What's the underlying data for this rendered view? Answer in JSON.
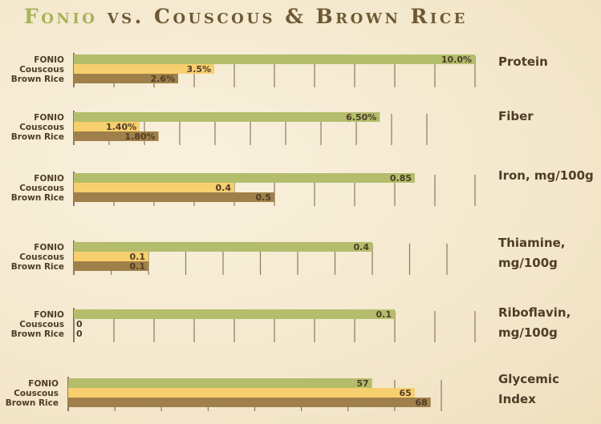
{
  "title": {
    "lead": "Fonio",
    "rest": " vs. Couscous & Brown Rice"
  },
  "colors": {
    "fonio": "#b3bd6c",
    "couscous": "#f7cf6e",
    "brown_rice": "#a0804a",
    "text": "#4e3d27",
    "grid": "#5c4a32"
  },
  "chart_data": [
    {
      "type": "bar",
      "metric": [
        "Protein"
      ],
      "categories": [
        "FONIO",
        "Couscous",
        "Brown Rice"
      ],
      "values": [
        10.0,
        3.5,
        2.6
      ],
      "labels": [
        "10.0%",
        "3.5%",
        "2.6%"
      ],
      "xlim": [
        0,
        10
      ]
    },
    {
      "type": "bar",
      "metric": [
        "Fiber"
      ],
      "categories": [
        "FONIO",
        "Couscous",
        "Brown Rice"
      ],
      "values": [
        6.5,
        1.4,
        1.8
      ],
      "labels": [
        "6.50%",
        "1.40%",
        "1.80%"
      ],
      "xlim": [
        0,
        7.5
      ]
    },
    {
      "type": "bar",
      "metric": [
        "Iron, mg/100g"
      ],
      "categories": [
        "FONIO",
        "Couscous",
        "Brown Rice"
      ],
      "values": [
        0.85,
        0.4,
        0.5
      ],
      "labels": [
        "0.85",
        "0.4",
        "0.5"
      ],
      "xlim": [
        0,
        1
      ]
    },
    {
      "type": "bar",
      "metric": [
        "Thiamine,",
        "mg/100g"
      ],
      "categories": [
        "FONIO",
        "Couscous",
        "Brown Rice"
      ],
      "values": [
        0.4,
        0.1,
        0.1
      ],
      "labels": [
        "0.4",
        "0.1",
        "0.1"
      ],
      "xlim": [
        0,
        0.5
      ]
    },
    {
      "type": "bar",
      "metric": [
        "Riboflavin,",
        "mg/100g"
      ],
      "categories": [
        "FONIO",
        "Couscous",
        "Brown Rice"
      ],
      "values": [
        0.1,
        0,
        0
      ],
      "labels": [
        "0.1",
        "0",
        "0"
      ],
      "xlim": [
        0,
        0.125
      ]
    },
    {
      "type": "bar",
      "metric": [
        "Glycemic",
        "Index"
      ],
      "categories": [
        "FONIO",
        "Couscous",
        "Brown Rice"
      ],
      "values": [
        57,
        65,
        68
      ],
      "labels": [
        "57",
        "65",
        "68"
      ],
      "xlim": [
        0,
        70
      ]
    }
  ]
}
